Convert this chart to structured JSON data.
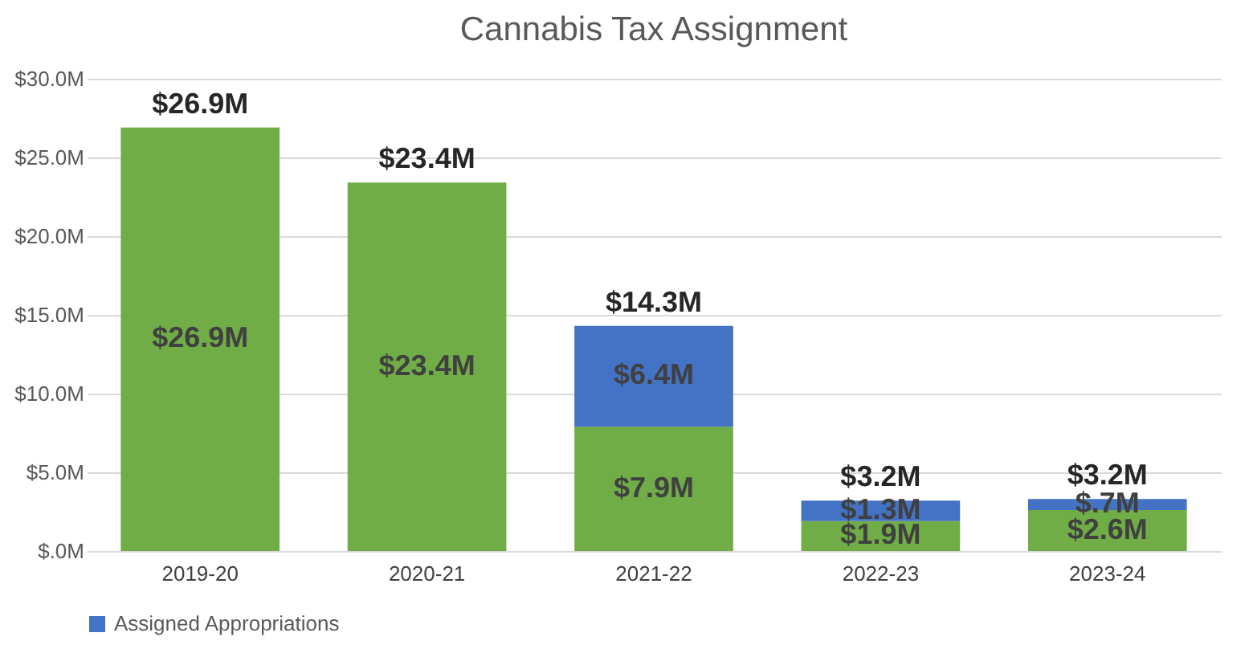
{
  "chart_data": {
    "type": "bar",
    "title": "Cannabis Tax Assignment",
    "stacked": true,
    "categories": [
      "2019-20",
      "2020-21",
      "2021-22",
      "2022-23",
      "2023-24"
    ],
    "series": [
      {
        "color": "#70ad47",
        "values": [
          26.9,
          23.4,
          7.9,
          1.9,
          2.6
        ],
        "value_labels": [
          "$26.9M",
          "$23.4M",
          "$7.9M",
          "$1.9M",
          "$2.6M"
        ]
      },
      {
        "name": "Assigned Appropriations",
        "color": "#4472c4",
        "values": [
          null,
          null,
          6.4,
          1.3,
          0.7
        ],
        "value_labels": [
          null,
          null,
          "$6.4M",
          "$1.3M",
          "$.7M"
        ]
      }
    ],
    "totals": [
      "$26.9M",
      "$23.4M",
      "$14.3M",
      "$3.2M",
      "$3.2M"
    ],
    "ylim": [
      0,
      30
    ],
    "yticks": [
      {
        "value": 0,
        "label": "$.0M"
      },
      {
        "value": 5,
        "label": "$5.0M"
      },
      {
        "value": 10,
        "label": "$10.0M"
      },
      {
        "value": 15,
        "label": "$15.0M"
      },
      {
        "value": 20,
        "label": "$20.0M"
      },
      {
        "value": 25,
        "label": "$25.0M"
      },
      {
        "value": 30,
        "label": "$30.0M"
      }
    ],
    "grid": "y",
    "legend": "bottom"
  }
}
